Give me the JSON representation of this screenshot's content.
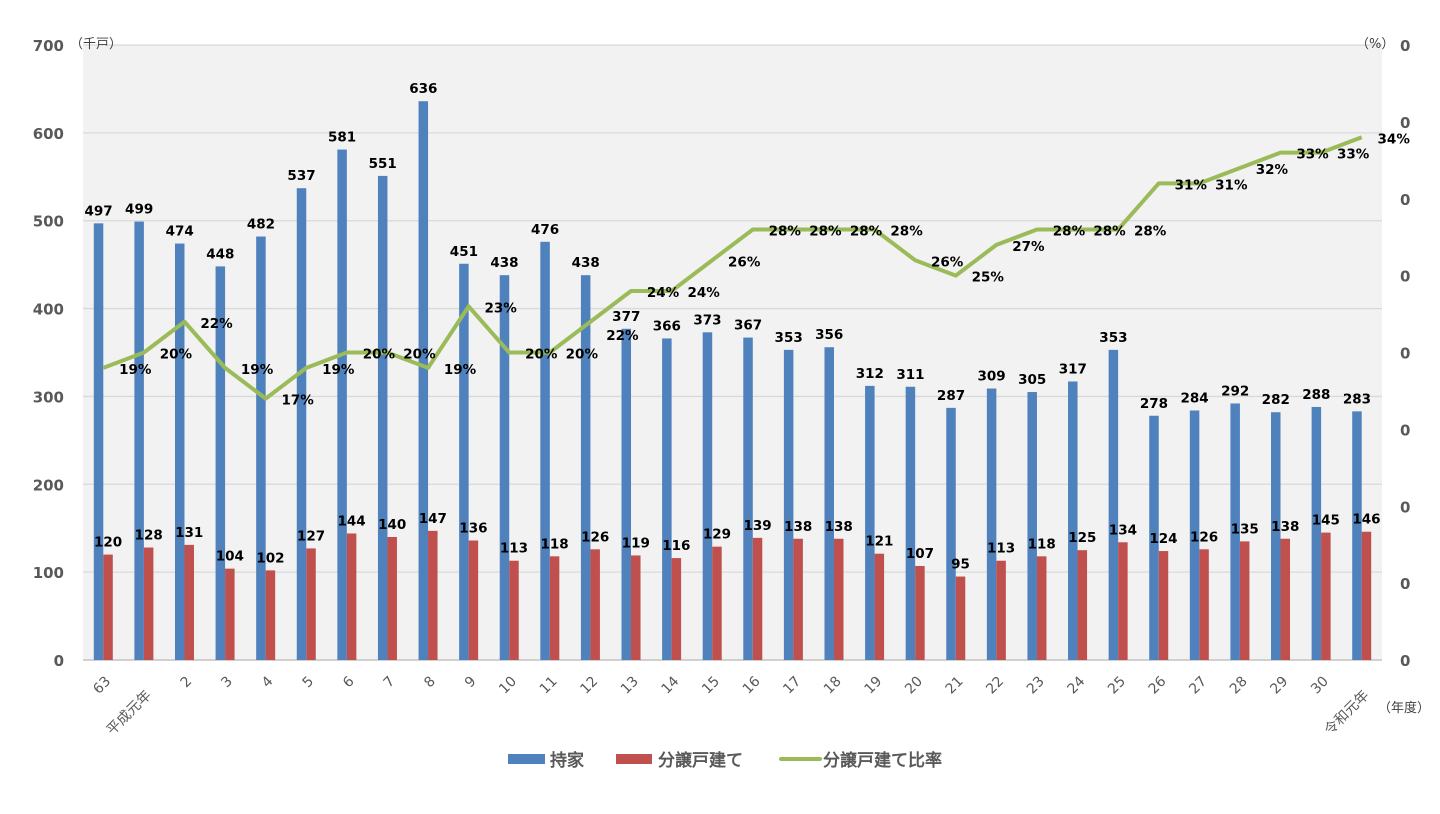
{
  "chart_data": {
    "type": "bar+line",
    "left_axis_unit": "（千戸）",
    "right_axis_unit": "（%）",
    "x_axis_unit": "（年度）",
    "ylim": [
      0,
      700
    ],
    "yticks": [
      0,
      100,
      200,
      300,
      400,
      500,
      600,
      700
    ],
    "y2lim": [
      0,
      0.4
    ],
    "y2tick_labels": [
      "0",
      "0",
      "0",
      "0",
      "0",
      "0",
      "0",
      "0",
      "0"
    ],
    "grid": true,
    "legend_placement": "bottom",
    "categories": [
      "63",
      "平成元年",
      "2",
      "3",
      "4",
      "5",
      "6",
      "7",
      "8",
      "9",
      "10",
      "11",
      "12",
      "13",
      "14",
      "15",
      "16",
      "17",
      "18",
      "19",
      "20",
      "21",
      "22",
      "23",
      "24",
      "25",
      "26",
      "27",
      "28",
      "29",
      "30",
      "令和元年"
    ],
    "series": [
      {
        "name": "持家",
        "type": "bar",
        "color": "#4f81bd",
        "values": [
          497,
          499,
          474,
          448,
          482,
          537,
          581,
          551,
          636,
          451,
          438,
          476,
          438,
          377,
          366,
          373,
          367,
          353,
          356,
          312,
          311,
          287,
          309,
          305,
          317,
          353,
          278,
          284,
          292,
          282,
          288,
          283
        ]
      },
      {
        "name": "分譲戸建て",
        "type": "bar",
        "color": "#c0504d",
        "values": [
          120,
          128,
          131,
          104,
          102,
          127,
          144,
          140,
          147,
          136,
          113,
          118,
          126,
          119,
          116,
          129,
          139,
          138,
          138,
          121,
          107,
          95,
          113,
          118,
          125,
          134,
          124,
          126,
          135,
          138,
          145,
          146
        ]
      },
      {
        "name": "分譲戸建て比率",
        "type": "line",
        "axis": "right",
        "color": "#9bbb59",
        "values": [
          19,
          20,
          22,
          19,
          17,
          19,
          20,
          20,
          19,
          23,
          20,
          20,
          22,
          24,
          24,
          26,
          28,
          28,
          28,
          28,
          26,
          25,
          27,
          28,
          28,
          28,
          31,
          31,
          32,
          33,
          33,
          34
        ],
        "unit": "%"
      }
    ]
  }
}
